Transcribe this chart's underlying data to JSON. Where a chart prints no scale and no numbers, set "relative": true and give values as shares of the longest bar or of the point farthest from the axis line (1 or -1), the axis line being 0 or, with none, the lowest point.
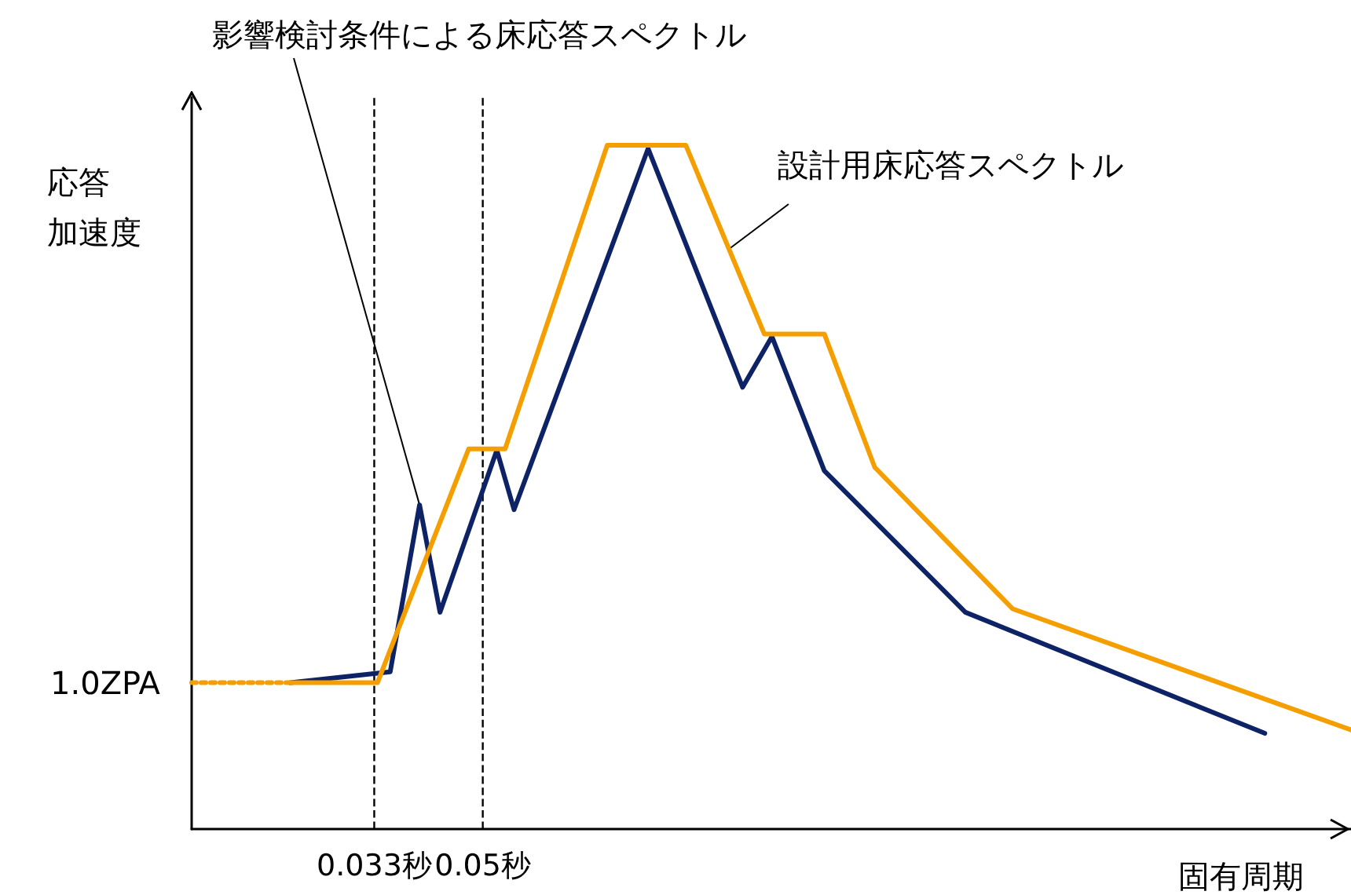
{
  "chart_data": {
    "type": "line",
    "relative": true,
    "xlabel": "固有周期",
    "ylabel": "応答加速度",
    "xlim": [
      0.0044,
      0.186
    ],
    "xticks": [
      {
        "value": 0.033,
        "label": "0.033秒"
      },
      {
        "value": 0.05,
        "label": "0.05秒"
      }
    ],
    "ref_lines": [
      {
        "axis": "x",
        "value": 0.033,
        "color": "#000000",
        "line_style": "dashed"
      },
      {
        "axis": "x",
        "value": 0.05,
        "color": "#000000",
        "line_style": "dashed"
      }
    ],
    "annotations": [
      "1.0ZPA"
    ],
    "series": [
      {
        "name": "影響検討条件による床応答スペクトル",
        "color": "#0d2366",
        "x": [
          0.0199,
          0.0355,
          0.0401,
          0.0433,
          0.0522,
          0.0549,
          0.0759,
          0.0907,
          0.0953,
          0.1035,
          0.1256,
          0.1725
        ],
        "values": [
          0.214,
          0.23,
          0.474,
          0.317,
          0.554,
          0.467,
          0.995,
          0.646,
          0.72,
          0.524,
          0.317,
          0.14
        ]
      },
      {
        "name": "設計用床応答スペクトル",
        "color": "#f59e00",
        "x": [
          0.0199,
          0.0335,
          0.0478,
          0.0535,
          0.0695,
          0.0818,
          0.0941,
          0.1035,
          0.1114,
          0.133,
          0.186
        ],
        "values": [
          0.214,
          0.214,
          0.556,
          0.556,
          1,
          1,
          0.724,
          0.724,
          0.529,
          0.322,
          0.145
        ]
      },
      {
        "color": "#f59e00",
        "line_style": "dotted",
        "x": [
          0.0044,
          0.0199
        ],
        "values": [
          0.214,
          0.214
        ]
      }
    ],
    "grid": false,
    "legend": false,
    "marker": "none",
    "line_style": "solid"
  }
}
